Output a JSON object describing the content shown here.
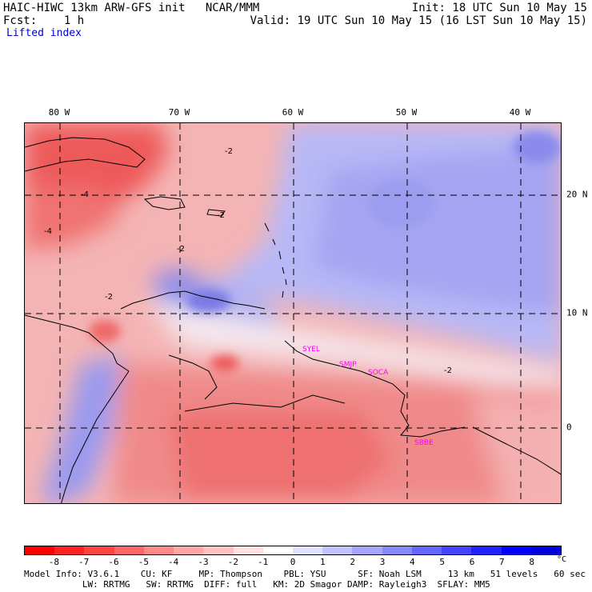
{
  "header": {
    "title_left": "HAIC-HIWC 13km ARW-GFS init   NCAR/MMM",
    "fcst_line": "Fcst:    1 h",
    "field_name": "Lifted index",
    "init_line": "Init: 18 UTC Sun 10 May 15",
    "valid_line": "Valid: 19 UTC Sun 10 May 15 (16 LST Sun 10 May 15)"
  },
  "map": {
    "lon_labels": [
      "80 W",
      "70 W",
      "60 W",
      "50 W",
      "40 W"
    ],
    "lat_labels": [
      "20 N",
      "10 N",
      "0"
    ],
    "contour_labels": [
      "-2",
      "-4",
      "-2",
      "-2",
      "-4",
      "-2",
      "-2"
    ],
    "stations": [
      "SYEL",
      "SMJP",
      "SOCA",
      "SBBE"
    ],
    "colors": {
      "land_outline": "#000000",
      "grid": "#000000",
      "station": "#ff00ff"
    }
  },
  "colorbar": {
    "ticks": [
      "-8",
      "-7",
      "-6",
      "-5",
      "-4",
      "-3",
      "-2",
      "-1",
      "0",
      "1",
      "2",
      "3",
      "4",
      "5",
      "6",
      "7",
      "8"
    ],
    "unit": "°C",
    "colors": [
      "#ff0000",
      "#ff2222",
      "#ff4444",
      "#ff6666",
      "#ff8888",
      "#ffa6a6",
      "#ffc2c2",
      "#ffe0e0",
      "#ffffff",
      "#e0e0ff",
      "#c2c2ff",
      "#a6a6ff",
      "#8888ff",
      "#6666ff",
      "#4444ff",
      "#2222ff",
      "#0000ff",
      "#0000dd"
    ]
  },
  "footer": {
    "line1": "Model Info: V3.6.1    CU: KF     MP: Thompson    PBL: YSU      SF: Noah LSM     13 km   51 levels   60 sec",
    "line2": "           LW: RRTMG   SW: RRTMG  DIFF: full   KM: 2D Smagor DAMP: Rayleigh3  SFLAY: MM5"
  }
}
